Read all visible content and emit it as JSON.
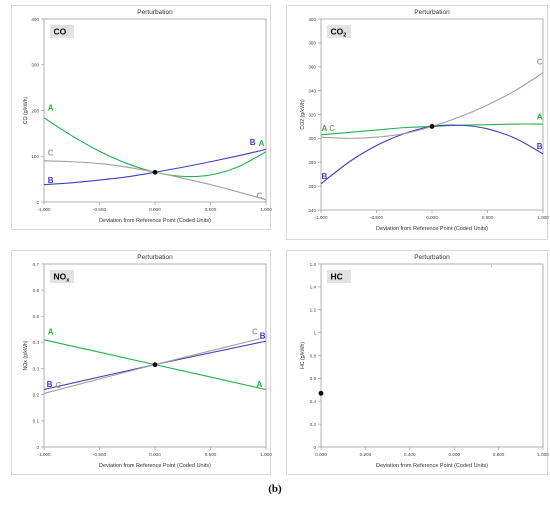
{
  "caption": "(b)",
  "colors": {
    "A": "#22b14c",
    "B": "#3f3fbf",
    "C": "#a0a0a0",
    "point": "#000000",
    "frame": "#9e9e9e"
  },
  "chart_data": [
    {
      "type": "line",
      "title": "Perturbation",
      "label": "CO",
      "xlabel": "Deviation from Reference Point (Coded Units)",
      "ylabel": "CO (g/kWh)",
      "xlim": [
        -1,
        1
      ],
      "ylim": [
        0,
        400
      ],
      "xticks": [
        -1,
        -0.5,
        0,
        0.5,
        1
      ],
      "xtick_labels": [
        "-1.000",
        "-0.500",
        "0.000",
        "0.500",
        "1.000"
      ],
      "yticks": [
        0,
        100,
        200,
        300,
        400
      ],
      "ytick_labels": [
        "0",
        "100",
        "200",
        "300",
        "400"
      ],
      "reference_point": [
        0,
        65
      ],
      "series": [
        {
          "name": "A",
          "x": [
            -1,
            -0.75,
            -0.5,
            -0.25,
            0,
            0.25,
            0.5,
            0.75,
            1
          ],
          "y": [
            184,
            145,
            111,
            84,
            65,
            56,
            59,
            77,
            110
          ]
        },
        {
          "name": "B",
          "x": [
            -1,
            -0.75,
            -0.5,
            -0.25,
            0,
            0.25,
            0.5,
            0.75,
            1
          ],
          "y": [
            38,
            42,
            48,
            55,
            65,
            76,
            88,
            101,
            115
          ]
        },
        {
          "name": "C",
          "x": [
            -1,
            -0.75,
            -0.5,
            -0.25,
            0,
            0.25,
            0.5,
            0.75,
            1
          ],
          "y": [
            90,
            88,
            84,
            76,
            65,
            52,
            38,
            22,
            5
          ]
        }
      ],
      "series_labels": [
        {
          "name": "A",
          "text": "A",
          "x": -0.94,
          "y": 200
        },
        {
          "name": "B",
          "text": "B",
          "x": -0.94,
          "y": 42
        },
        {
          "name": "C",
          "text": "C",
          "x": -0.94,
          "y": 102
        },
        {
          "name": "B",
          "text": "B",
          "x": 0.88,
          "y": 125
        },
        {
          "name": "A",
          "text": "A",
          "x": 0.96,
          "y": 122
        },
        {
          "name": "C",
          "text": "C",
          "x": 0.94,
          "y": 8
        }
      ]
    },
    {
      "type": "line",
      "title": "Perturbation",
      "label": "CO",
      "label_sub": "2",
      "xlabel": "Deviation from Reference Point (Coded Units)",
      "ylabel": "CO2 (g/kWh)",
      "xlim": [
        -1,
        1
      ],
      "ylim": [
        240,
        400
      ],
      "xticks": [
        -1,
        -0.5,
        0,
        0.5,
        1
      ],
      "xtick_labels": [
        "-1.000",
        "-0.500",
        "0.000",
        "0.500",
        "1.000"
      ],
      "yticks": [
        240,
        260,
        280,
        300,
        320,
        340,
        360,
        380,
        400
      ],
      "ytick_labels": [
        "240",
        "260",
        "280",
        "300",
        "320",
        "340",
        "360",
        "380",
        "400"
      ],
      "reference_point": [
        0,
        310
      ],
      "series": [
        {
          "name": "A",
          "x": [
            -1,
            -0.75,
            -0.5,
            -0.25,
            0,
            0.25,
            0.5,
            0.75,
            1
          ],
          "y": [
            303,
            305,
            307,
            309,
            310,
            311,
            311.5,
            312,
            312
          ]
        },
        {
          "name": "B",
          "x": [
            -1,
            -0.75,
            -0.5,
            -0.25,
            0,
            0.25,
            0.5,
            0.75,
            1
          ],
          "y": [
            262,
            280,
            294,
            304,
            310,
            311,
            308,
            300,
            287
          ]
        },
        {
          "name": "C",
          "x": [
            -1,
            -0.75,
            -0.5,
            -0.25,
            0,
            0.25,
            0.5,
            0.75,
            1
          ],
          "y": [
            301,
            300,
            301,
            304,
            310,
            318,
            328,
            340,
            355
          ]
        }
      ],
      "series_labels": [
        {
          "name": "A",
          "text": "A",
          "x": -0.97,
          "y": 306
        },
        {
          "name": "C",
          "text": "C",
          "x": -0.9,
          "y": 306
        },
        {
          "name": "B",
          "text": "B",
          "x": -0.97,
          "y": 266
        },
        {
          "name": "C",
          "text": "C",
          "x": 0.97,
          "y": 362
        },
        {
          "name": "A",
          "text": "A",
          "x": 0.97,
          "y": 316
        },
        {
          "name": "B",
          "text": "B",
          "x": 0.97,
          "y": 291
        }
      ]
    },
    {
      "type": "line",
      "title": "Perturbation",
      "label": "NO",
      "label_sub": "x",
      "xlabel": "Deviation from Reference Point (Coded Units)",
      "ylabel": "NOx (g/kWh)",
      "xlim": [
        -1,
        1
      ],
      "ylim": [
        0,
        0.7
      ],
      "xticks": [
        -1,
        -0.5,
        0,
        0.5,
        1
      ],
      "xtick_labels": [
        "-1.000",
        "-0.500",
        "0.000",
        "0.500",
        "1.000"
      ],
      "yticks": [
        0,
        0.1,
        0.2,
        0.3,
        0.4,
        0.5,
        0.6,
        0.7
      ],
      "ytick_labels": [
        "0",
        "0.1",
        "0.2",
        "0.3",
        "0.4",
        "0.5",
        "0.6",
        "0.7"
      ],
      "reference_point": [
        0,
        0.315
      ],
      "series": [
        {
          "name": "A",
          "x": [
            -1,
            0,
            1
          ],
          "y": [
            0.41,
            0.315,
            0.22
          ]
        },
        {
          "name": "B",
          "x": [
            -1,
            0,
            1
          ],
          "y": [
            0.22,
            0.315,
            0.405
          ]
        },
        {
          "name": "C",
          "x": [
            -1,
            0,
            1
          ],
          "y": [
            0.205,
            0.315,
            0.42
          ]
        }
      ],
      "series_labels": [
        {
          "name": "A",
          "text": "A",
          "x": -0.94,
          "y": 0.43
        },
        {
          "name": "B",
          "text": "B",
          "x": -0.95,
          "y": 0.23
        },
        {
          "name": "C",
          "text": "C",
          "x": -0.87,
          "y": 0.225
        },
        {
          "name": "C",
          "text": "C",
          "x": 0.9,
          "y": 0.43
        },
        {
          "name": "B",
          "text": "B",
          "x": 0.97,
          "y": 0.415
        },
        {
          "name": "A",
          "text": "A",
          "x": 0.94,
          "y": 0.23
        }
      ]
    },
    {
      "type": "scatter",
      "title": "Perturbation",
      "label": "HC",
      "xlabel": "Deviation from Reference Point (Coded Units)",
      "ylabel": "HC (g/kWh)",
      "xlim": [
        0,
        1
      ],
      "ylim": [
        0,
        1.6
      ],
      "xticks": [
        0,
        0.2,
        0.4,
        0.6,
        0.8,
        1
      ],
      "xtick_labels": [
        "0.000",
        "0.200",
        "0.400",
        "0.600",
        "0.800",
        "1.000"
      ],
      "yticks": [
        0,
        0.2,
        0.4,
        0.6,
        0.8,
        1,
        1.2,
        1.4,
        1.6
      ],
      "ytick_labels": [
        "0",
        "0.2",
        "0.4",
        "0.6",
        "0.8",
        "1",
        "1.2",
        "1.4",
        "1.6"
      ],
      "reference_point": [
        0,
        0.47
      ],
      "series": [],
      "series_labels": []
    }
  ]
}
